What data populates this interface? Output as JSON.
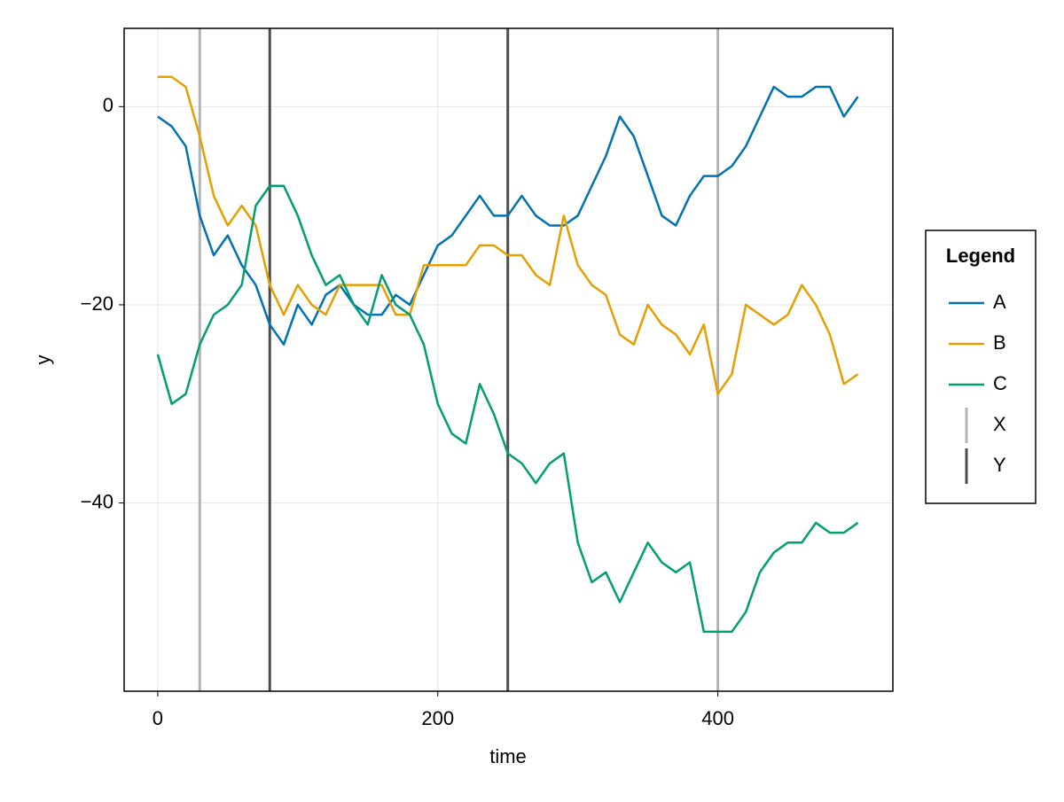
{
  "chart_data": {
    "type": "line",
    "x_label": "time",
    "y_label": "y",
    "legend_title": "Legend",
    "legend": "right",
    "x": [
      0,
      10,
      20,
      30,
      40,
      50,
      60,
      70,
      80,
      90,
      100,
      110,
      120,
      130,
      140,
      150,
      160,
      170,
      180,
      190,
      200,
      210,
      220,
      230,
      240,
      250,
      260,
      270,
      280,
      290,
      300,
      310,
      320,
      330,
      340,
      350,
      360,
      370,
      380,
      390,
      400,
      410,
      420,
      430,
      440,
      450,
      460,
      470,
      480,
      490,
      500
    ],
    "series": [
      {
        "name": "A",
        "color": "#0072b2",
        "values": [
          -1,
          -2,
          -4,
          -11,
          -15,
          -13,
          -16,
          -18,
          -22,
          -24,
          -20,
          -22,
          -19,
          -18,
          -20,
          -21,
          -21,
          -19,
          -20,
          -17,
          -14,
          -13,
          -11,
          -9,
          -11,
          -11,
          -9,
          -11,
          -12,
          -12,
          -11,
          -8,
          -5,
          -1,
          -3,
          -7,
          -11,
          -12,
          -9,
          -7,
          -7,
          -6,
          -4,
          -1,
          2,
          1,
          1,
          2,
          2,
          -1,
          1
        ]
      },
      {
        "name": "B",
        "color": "#e69f00",
        "values": [
          3,
          3,
          2,
          -3,
          -9,
          -12,
          -10,
          -12,
          -18,
          -21,
          -18,
          -20,
          -21,
          -18,
          -18,
          -18,
          -18,
          -21,
          -21,
          -16,
          -16,
          -16,
          -16,
          -14,
          -14,
          -15,
          -15,
          -17,
          -18,
          -11,
          -16,
          -18,
          -19,
          -23,
          -24,
          -20,
          -22,
          -23,
          -25,
          -22,
          -29,
          -27,
          -20,
          -21,
          -22,
          -21,
          -18,
          -20,
          -23,
          -28,
          -27
        ]
      },
      {
        "name": "C",
        "color": "#009e73",
        "values": [
          -25,
          -30,
          -29,
          -24,
          -21,
          -20,
          -18,
          -10,
          -8,
          -8,
          -11,
          -15,
          -18,
          -17,
          -20,
          -22,
          -17,
          -20,
          -21,
          -24,
          -30,
          -33,
          -34,
          -28,
          -31,
          -35,
          -36,
          -38,
          -36,
          -35,
          -44,
          -48,
          -47,
          -50,
          -47,
          -44,
          -46,
          -47,
          -46,
          -53,
          -53,
          -53,
          -51,
          -47,
          -45,
          -44,
          -44,
          -42,
          -43,
          -43,
          -42
        ]
      }
    ],
    "vlines": [
      {
        "name": "X",
        "color": "#b3b3b3",
        "x": [
          30,
          400
        ]
      },
      {
        "name": "Y",
        "color": "#4d4d4d",
        "x": [
          80,
          250
        ]
      }
    ],
    "xlim": [
      -24,
      525
    ],
    "ylim": [
      -59,
      7.9
    ],
    "xticks": [
      0,
      200,
      400
    ],
    "yticks": [
      {
        "value": 0,
        "label": "0"
      },
      {
        "value": -20,
        "label": "−20"
      },
      {
        "value": -40,
        "label": "−40"
      }
    ],
    "grid": true
  }
}
